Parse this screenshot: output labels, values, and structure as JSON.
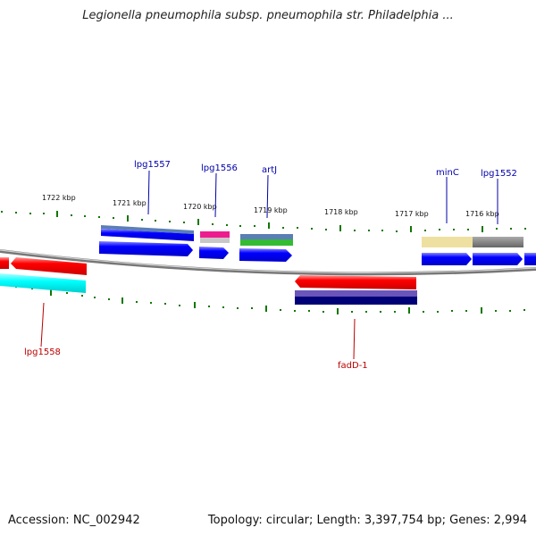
{
  "title": "Legionella pneumophila subsp. pneumophila str. Philadelphia ...",
  "footer": {
    "accession": "Accession: NC_002942",
    "summary": "Topology: circular; Length: 3,397,754 bp; Genes: 2,994"
  },
  "ruler": {
    "labels": [
      "1722 kbp",
      "1721 kbp",
      "1720 kbp",
      "1719 kbp",
      "1718 kbp",
      "1717 kbp",
      "1716 kbp"
    ]
  },
  "genes_forward": [
    "lpg1557",
    "lpg1556",
    "artJ",
    "minC",
    "lpg1552"
  ],
  "genes_reverse": [
    "lpg1558",
    "fadD-1"
  ],
  "colors": {
    "label_forward": "#0000aa",
    "label_reverse": "#bb0000",
    "tick": "#117700",
    "backbone": "#888888"
  }
}
